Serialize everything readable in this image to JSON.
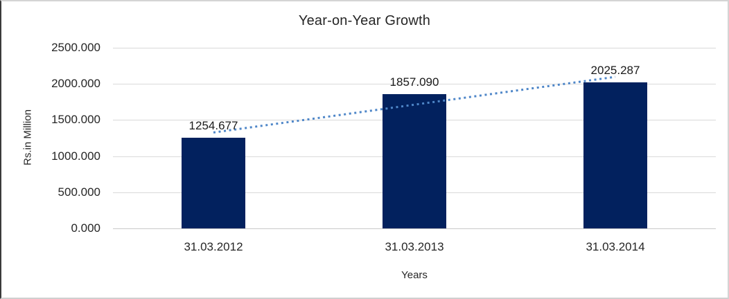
{
  "chart_data": {
    "type": "bar",
    "title": "Year-on-Year Growth",
    "categories": [
      "31.03.2012",
      "31.03.2013",
      "31.03.2014"
    ],
    "values": [
      1254.677,
      1857.09,
      2025.287
    ],
    "data_labels": [
      "1254.677",
      "1857.090",
      "2025.287"
    ],
    "xlabel": "Years",
    "ylabel": "Rs.in Million",
    "ylim": [
      0,
      2500
    ],
    "yticks": [
      0,
      500,
      1000,
      1500,
      2000,
      2500
    ],
    "ytick_labels": [
      "0.000",
      "500.000",
      "1000.000",
      "1500.000",
      "2000.000",
      "2500.000"
    ],
    "grid": true,
    "legend": "none",
    "colors": {
      "bar": "#02215E",
      "trendline": "#4E86C8",
      "gridline": "#D9D9D9",
      "text": "#262626"
    },
    "trendline": {
      "type": "linear",
      "style": "dotted",
      "fit_values": [
        1327.4,
        2097.3
      ]
    }
  }
}
